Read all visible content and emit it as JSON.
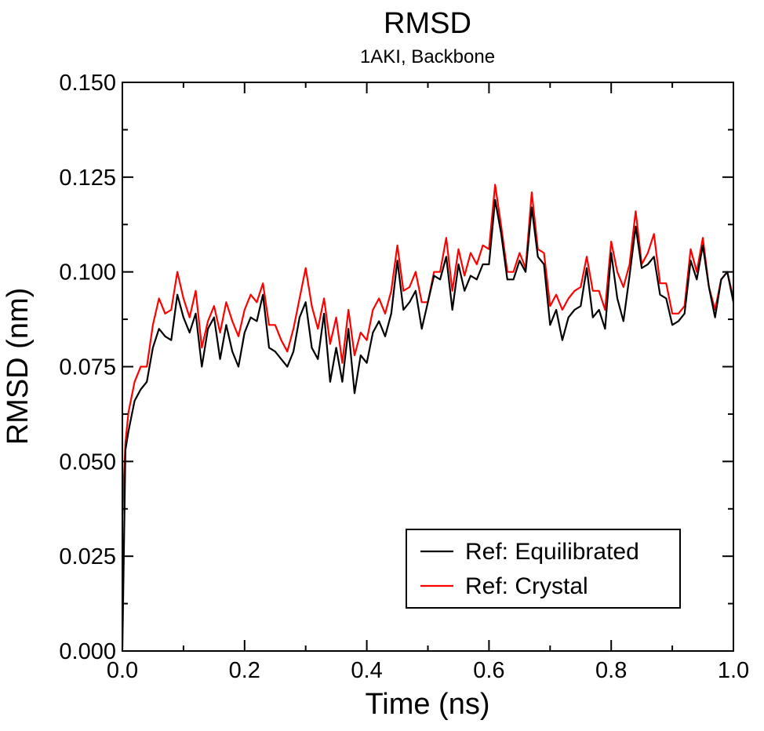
{
  "chart_data": {
    "type": "line",
    "title": "RMSD",
    "subtitle": "1AKI, Backbone",
    "xlabel": "Time (ns)",
    "ylabel": "RMSD (nm)",
    "xlim": [
      0,
      1.0
    ],
    "ylim": [
      0,
      0.15
    ],
    "xticks": [
      "0.0",
      "0.2",
      "0.4",
      "0.6",
      "0.8",
      "1.0"
    ],
    "yticks": [
      "0.000",
      "0.025",
      "0.050",
      "0.075",
      "0.100",
      "0.125",
      "0.150"
    ],
    "grid": false,
    "legend_position": "bottom-right",
    "x": [
      0.0,
      0.005,
      0.01,
      0.02,
      0.03,
      0.04,
      0.05,
      0.06,
      0.07,
      0.08,
      0.09,
      0.1,
      0.11,
      0.12,
      0.13,
      0.14,
      0.15,
      0.16,
      0.17,
      0.18,
      0.19,
      0.2,
      0.21,
      0.22,
      0.23,
      0.24,
      0.25,
      0.26,
      0.27,
      0.28,
      0.29,
      0.3,
      0.31,
      0.32,
      0.33,
      0.34,
      0.35,
      0.36,
      0.37,
      0.38,
      0.39,
      0.4,
      0.41,
      0.42,
      0.43,
      0.44,
      0.45,
      0.46,
      0.47,
      0.48,
      0.49,
      0.5,
      0.51,
      0.52,
      0.53,
      0.54,
      0.55,
      0.56,
      0.57,
      0.58,
      0.59,
      0.6,
      0.61,
      0.62,
      0.63,
      0.64,
      0.65,
      0.66,
      0.67,
      0.68,
      0.69,
      0.7,
      0.71,
      0.72,
      0.73,
      0.74,
      0.75,
      0.76,
      0.77,
      0.78,
      0.79,
      0.8,
      0.81,
      0.82,
      0.83,
      0.84,
      0.85,
      0.86,
      0.87,
      0.88,
      0.89,
      0.9,
      0.91,
      0.92,
      0.93,
      0.94,
      0.95,
      0.96,
      0.97,
      0.98,
      0.99,
      1.0
    ],
    "series": [
      {
        "name": "Ref: Equilibrated",
        "color": "#000000",
        "values": [
          0.0,
          0.053,
          0.058,
          0.066,
          0.069,
          0.071,
          0.08,
          0.085,
          0.083,
          0.082,
          0.094,
          0.088,
          0.084,
          0.089,
          0.075,
          0.085,
          0.088,
          0.077,
          0.086,
          0.079,
          0.075,
          0.084,
          0.088,
          0.087,
          0.094,
          0.08,
          0.079,
          0.077,
          0.075,
          0.079,
          0.088,
          0.092,
          0.08,
          0.077,
          0.089,
          0.071,
          0.08,
          0.071,
          0.085,
          0.068,
          0.078,
          0.076,
          0.084,
          0.087,
          0.083,
          0.089,
          0.103,
          0.09,
          0.092,
          0.095,
          0.085,
          0.092,
          0.099,
          0.098,
          0.104,
          0.09,
          0.102,
          0.095,
          0.099,
          0.098,
          0.102,
          0.102,
          0.119,
          0.11,
          0.098,
          0.098,
          0.103,
          0.1,
          0.117,
          0.104,
          0.102,
          0.086,
          0.09,
          0.082,
          0.088,
          0.09,
          0.091,
          0.101,
          0.088,
          0.09,
          0.085,
          0.105,
          0.093,
          0.087,
          0.099,
          0.112,
          0.101,
          0.102,
          0.104,
          0.094,
          0.093,
          0.086,
          0.087,
          0.089,
          0.103,
          0.098,
          0.107,
          0.096,
          0.088,
          0.098,
          0.1,
          0.092
        ]
      },
      {
        "name": "Ref: Crystal",
        "color": "#ff0000",
        "values": [
          0.036,
          0.055,
          0.063,
          0.071,
          0.075,
          0.075,
          0.086,
          0.093,
          0.089,
          0.09,
          0.1,
          0.093,
          0.088,
          0.095,
          0.08,
          0.087,
          0.091,
          0.084,
          0.092,
          0.087,
          0.083,
          0.09,
          0.094,
          0.092,
          0.097,
          0.086,
          0.086,
          0.082,
          0.079,
          0.085,
          0.093,
          0.101,
          0.091,
          0.085,
          0.093,
          0.081,
          0.088,
          0.076,
          0.09,
          0.078,
          0.084,
          0.082,
          0.09,
          0.093,
          0.089,
          0.095,
          0.107,
          0.095,
          0.096,
          0.1,
          0.092,
          0.092,
          0.1,
          0.1,
          0.109,
          0.095,
          0.106,
          0.099,
          0.105,
          0.102,
          0.107,
          0.106,
          0.123,
          0.112,
          0.1,
          0.1,
          0.105,
          0.101,
          0.121,
          0.106,
          0.105,
          0.091,
          0.094,
          0.09,
          0.093,
          0.095,
          0.096,
          0.104,
          0.095,
          0.095,
          0.09,
          0.108,
          0.1,
          0.096,
          0.102,
          0.116,
          0.102,
          0.105,
          0.11,
          0.097,
          0.097,
          0.089,
          0.089,
          0.091,
          0.106,
          0.1,
          0.109,
          0.096,
          0.09,
          0.098,
          0.1,
          0.093
        ]
      }
    ]
  }
}
